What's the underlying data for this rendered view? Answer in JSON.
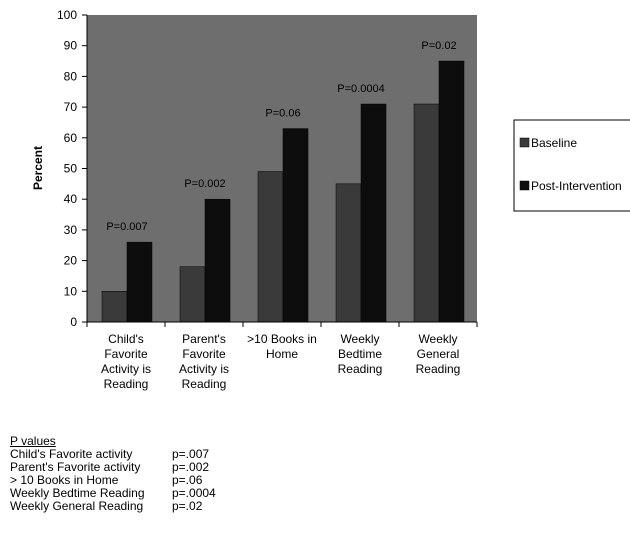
{
  "colors": {
    "plot_background": "#6e6e6e",
    "baseline": "#3a3a3a",
    "post_intervention": "#0d0d0d",
    "axis": "#000000"
  },
  "chart_data": {
    "type": "bar",
    "title": "",
    "xlabel": "",
    "ylabel": "Percent",
    "ylim": [
      0,
      100
    ],
    "yticks": [
      0,
      10,
      20,
      30,
      40,
      50,
      60,
      70,
      80,
      90,
      100
    ],
    "grid": false,
    "legend_position": "right",
    "categories": [
      [
        "Child's",
        "Favorite",
        "Activity is",
        "Reading"
      ],
      [
        "Parent's",
        "Favorite",
        "Activity is",
        "Reading"
      ],
      [
        ">10 Books in",
        "Home"
      ],
      [
        "Weekly",
        "Bedtime",
        "Reading"
      ],
      [
        "Weekly",
        "General",
        "Reading"
      ]
    ],
    "series": [
      {
        "name": "Baseline",
        "values": [
          10,
          18,
          49,
          45,
          71
        ]
      },
      {
        "name": "Post-Intervention",
        "values": [
          26,
          40,
          63,
          71,
          85
        ]
      }
    ],
    "annotations": [
      "P=0.007",
      "P=0.002",
      "P=0.06",
      "P=0.0004",
      "P=0.02"
    ]
  },
  "pvalues": {
    "title": "P values",
    "rows": [
      {
        "label": "Child's Favorite activity",
        "value": "p=.007"
      },
      {
        "label": "Parent's Favorite activity",
        "value": "p=.002"
      },
      {
        "label": "> 10 Books in Home",
        "value": "p=.06"
      },
      {
        "label": "Weekly Bedtime Reading",
        "value": "p=.0004"
      },
      {
        "label": "Weekly General Reading",
        "value": "p=.02"
      }
    ]
  }
}
